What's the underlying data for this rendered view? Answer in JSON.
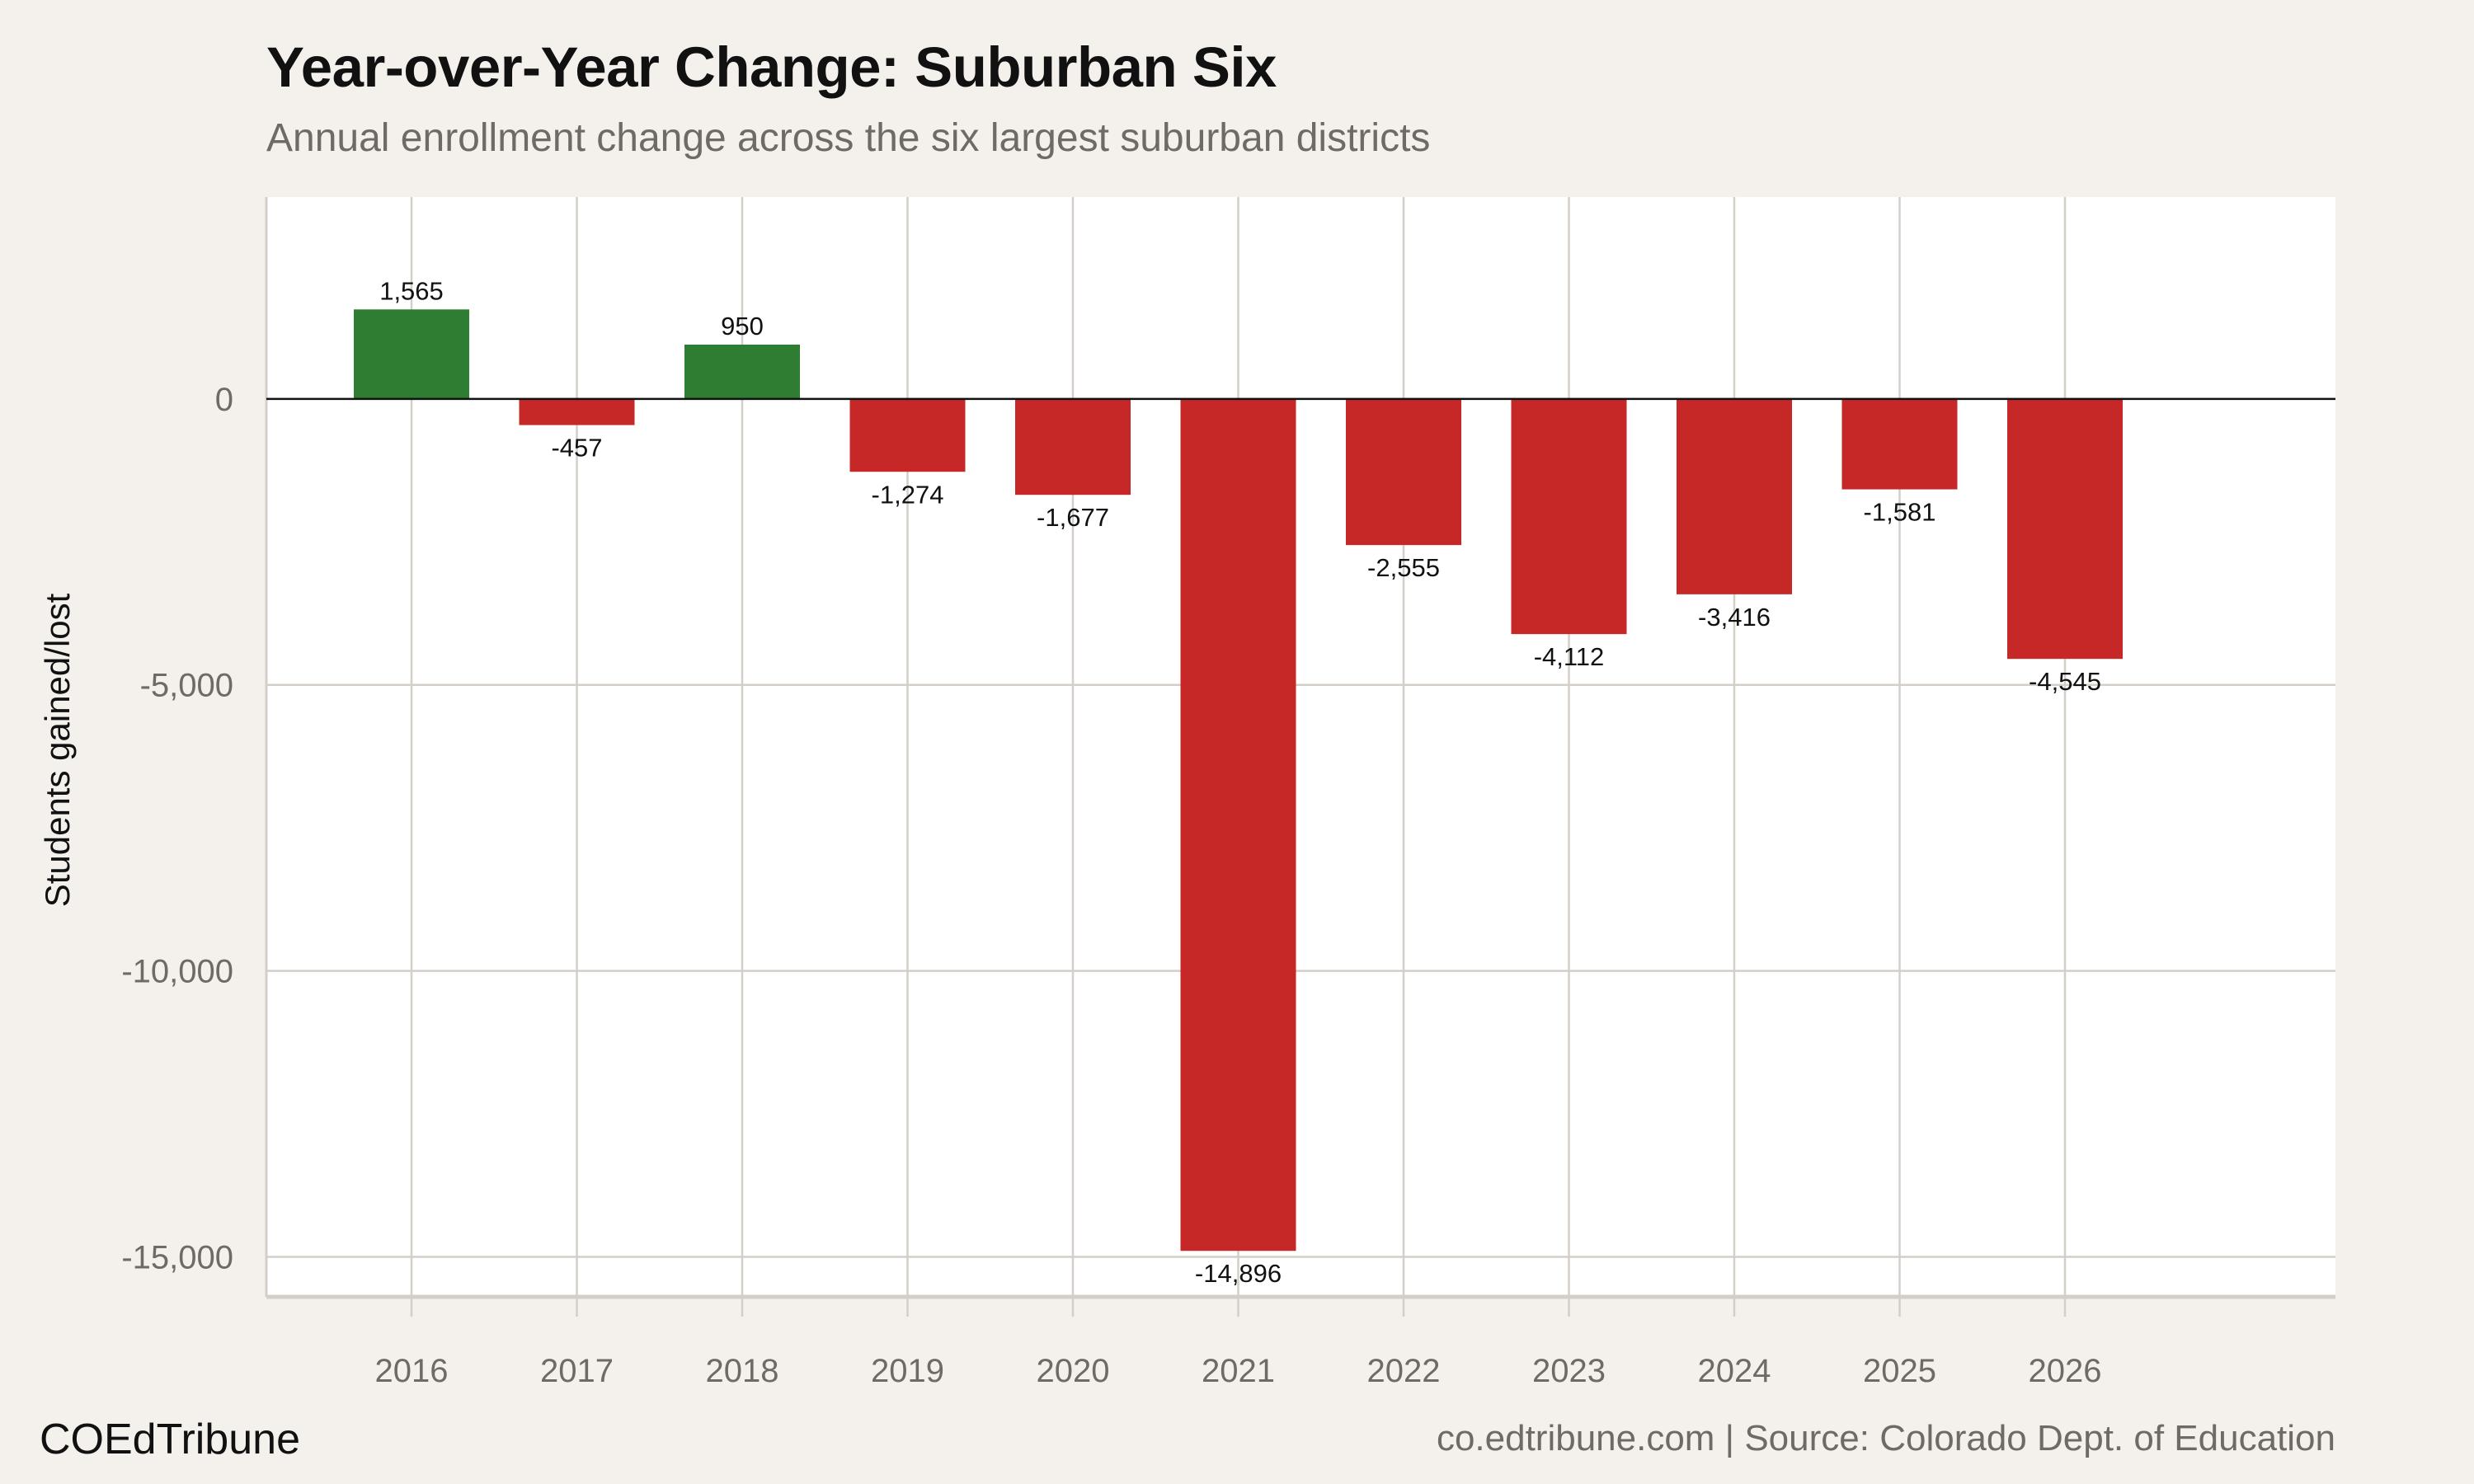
{
  "chart_data": {
    "type": "bar",
    "title": "Year-over-Year Change: Suburban Six",
    "subtitle": "Annual enrollment change across the six largest suburban districts",
    "xlabel": "",
    "ylabel": "Students gained/lost",
    "categories": [
      "2016",
      "2017",
      "2018",
      "2019",
      "2020",
      "2021",
      "2022",
      "2023",
      "2024",
      "2025",
      "2026"
    ],
    "values": [
      1565,
      -457,
      950,
      -1274,
      -1677,
      -14896,
      -2555,
      -4112,
      -3416,
      -1581,
      -4545
    ],
    "data_labels": [
      "1,565",
      "-457",
      "950",
      "-1,274",
      "-1,677",
      "-14,896",
      "-2,555",
      "-4,112",
      "-3,416",
      "-1,581",
      "-4,545"
    ],
    "ylim": [
      -15700,
      3530
    ],
    "yticks": [
      0,
      -5000,
      -10000,
      -15000
    ],
    "ytick_labels": [
      "0",
      "-5,000",
      "-10,000",
      "-15,000"
    ],
    "grid": true,
    "colors": {
      "positive": "#2e7d32",
      "negative": "#c62828",
      "zero_line": "#111111",
      "grid": "#d3cfc8",
      "panel": "#ffffff",
      "background": "#f4f1ec"
    }
  },
  "footer": {
    "brand": "COEdTribune",
    "source": "co.edtribune.com | Source: Colorado Dept. of Education"
  }
}
